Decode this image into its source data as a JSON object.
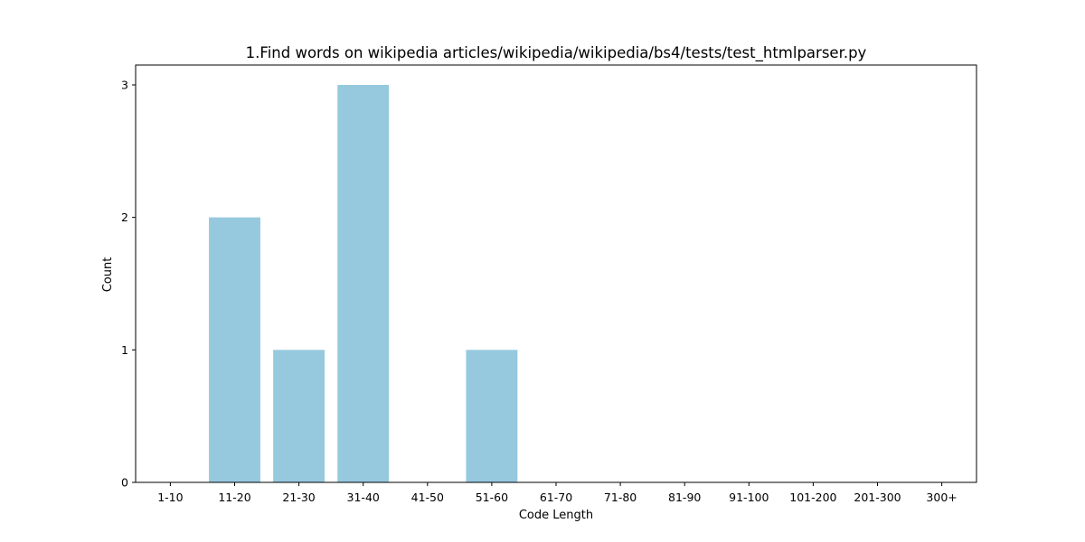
{
  "chart_data": {
    "type": "bar",
    "title": "1.Find words on wikipedia articles/wikipedia/wikipedia/bs4/tests/test_htmlparser.py",
    "xlabel": "Code Length",
    "ylabel": "Count",
    "categories": [
      "1-10",
      "11-20",
      "21-30",
      "31-40",
      "41-50",
      "51-60",
      "61-70",
      "71-80",
      "81-90",
      "91-100",
      "101-200",
      "201-300",
      "300+"
    ],
    "values": [
      0,
      2,
      1,
      3,
      0,
      1,
      0,
      0,
      0,
      0,
      0,
      0,
      0
    ],
    "yticks": [
      0,
      1,
      2,
      3
    ],
    "ylim": [
      0,
      3.15
    ],
    "bar_color": "#96c9de",
    "grid": false,
    "legend": "none"
  }
}
